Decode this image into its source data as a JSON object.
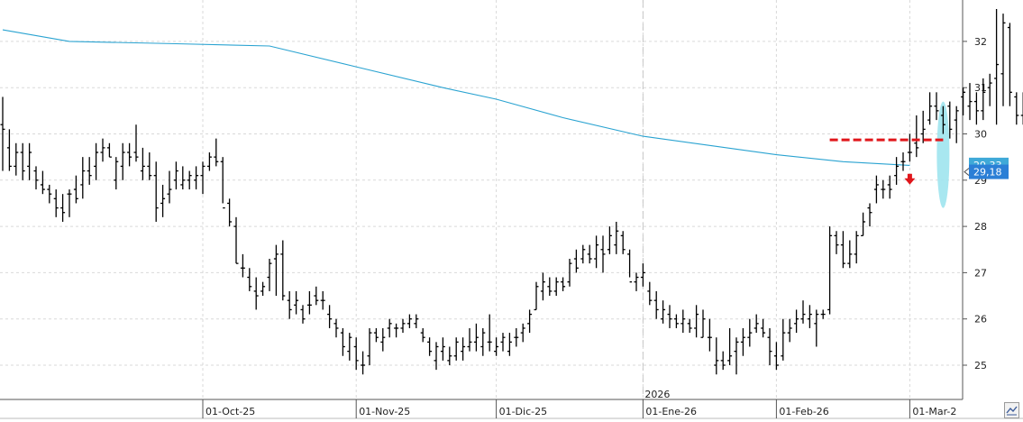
{
  "chart_data": {
    "type": "ohlc",
    "title": "",
    "xlabel": "",
    "ylabel": "",
    "ylim": [
      24.2,
      32.9
    ],
    "y_ticks": [
      25,
      26,
      27,
      28,
      29,
      30,
      31,
      32
    ],
    "y_tick_labels": [
      "25",
      "26",
      "27",
      "28",
      "29",
      "30",
      "31",
      "32"
    ],
    "grid": true,
    "x_tick_labels": [
      {
        "label": "01-Oct-25",
        "index": 30
      },
      {
        "label": "01-Nov-25",
        "index": 53
      },
      {
        "label": "01-Dic-25",
        "index": 74
      },
      {
        "label": "01-Ene-26",
        "index": 96
      },
      {
        "label": "01-Feb-26",
        "index": 116
      },
      {
        "label": "01-Mar-2",
        "index": 136
      }
    ],
    "year_marker": {
      "label": "2026",
      "index": 96
    },
    "last_price_label": "29,18",
    "last_price": 29.18,
    "ma_label_value": 29.33,
    "moving_average": {
      "color": "#2aa3d1",
      "points": [
        [
          0,
          32.25
        ],
        [
          10,
          32.0
        ],
        [
          26,
          31.95
        ],
        [
          40,
          31.9
        ],
        [
          53,
          31.45
        ],
        [
          66,
          31.0
        ],
        [
          74,
          30.75
        ],
        [
          84,
          30.35
        ],
        [
          96,
          29.95
        ],
        [
          106,
          29.75
        ],
        [
          116,
          29.55
        ],
        [
          126,
          29.4
        ],
        [
          136,
          29.32
        ]
      ]
    },
    "resistance_line": {
      "value": 29.87,
      "from_index": 124,
      "to_index": 141,
      "color": "#e0161b"
    },
    "sell_signal": {
      "index": 136,
      "value": 29.0,
      "color": "#e0161b"
    },
    "highlight_ellipse": {
      "index": 141,
      "low": 28.4,
      "high": 30.7,
      "color": "#9fe4ee"
    },
    "bars": [
      [
        30.2,
        30.8,
        29.2,
        30.1
      ],
      [
        29.7,
        30.1,
        29.2,
        29.3
      ],
      [
        29.3,
        29.8,
        29.1,
        29.6
      ],
      [
        29.6,
        29.8,
        29.0,
        29.2
      ],
      [
        29.3,
        29.8,
        29.0,
        29.6
      ],
      [
        29.2,
        29.3,
        28.8,
        29.0
      ],
      [
        28.9,
        29.2,
        28.7,
        28.8
      ],
      [
        28.8,
        28.9,
        28.5,
        28.7
      ],
      [
        28.6,
        28.8,
        28.2,
        28.4
      ],
      [
        28.4,
        28.7,
        28.1,
        28.3
      ],
      [
        28.7,
        28.8,
        28.2,
        28.7
      ],
      [
        28.8,
        29.1,
        28.5,
        28.6
      ],
      [
        28.9,
        29.5,
        28.6,
        29.2
      ],
      [
        29.2,
        29.5,
        28.9,
        29.1
      ],
      [
        29.3,
        29.8,
        29.0,
        29.6
      ],
      [
        29.6,
        29.9,
        29.4,
        29.7
      ],
      [
        29.7,
        29.8,
        29.5,
        29.5
      ],
      [
        29.0,
        29.5,
        28.8,
        29.4
      ],
      [
        29.3,
        29.8,
        29.0,
        29.6
      ],
      [
        29.6,
        29.8,
        29.3,
        29.5
      ],
      [
        29.6,
        30.2,
        29.4,
        29.5
      ],
      [
        29.2,
        29.7,
        29.0,
        29.3
      ],
      [
        29.3,
        29.6,
        29.0,
        29.1
      ],
      [
        29.1,
        29.4,
        28.1,
        28.4
      ],
      [
        28.5,
        28.9,
        28.2,
        28.6
      ],
      [
        28.7,
        29.2,
        28.5,
        28.8
      ],
      [
        29.0,
        29.4,
        28.8,
        29.2
      ],
      [
        28.9,
        29.3,
        28.8,
        29.0
      ],
      [
        29.0,
        29.2,
        28.8,
        29.1
      ],
      [
        29.0,
        29.3,
        28.8,
        29.1
      ],
      [
        29.1,
        29.4,
        28.7,
        29.3
      ],
      [
        29.3,
        29.6,
        29.2,
        29.5
      ],
      [
        29.5,
        29.9,
        29.3,
        29.4
      ],
      [
        29.4,
        29.5,
        28.5,
        28.4
      ],
      [
        28.5,
        28.6,
        28.0,
        28.1
      ],
      [
        28.0,
        28.2,
        27.2,
        27.2
      ],
      [
        27.1,
        27.4,
        26.9,
        27.1
      ],
      [
        26.9,
        27.1,
        26.6,
        26.7
      ],
      [
        26.6,
        26.9,
        26.2,
        26.5
      ],
      [
        26.6,
        26.8,
        26.5,
        26.7
      ],
      [
        26.9,
        27.3,
        26.6,
        27.2
      ],
      [
        27.3,
        27.6,
        26.5,
        27.4
      ],
      [
        27.4,
        27.7,
        26.4,
        26.5
      ],
      [
        26.4,
        26.6,
        26.0,
        26.2
      ],
      [
        26.3,
        26.6,
        26.1,
        26.4
      ],
      [
        26.2,
        26.3,
        25.9,
        26.0
      ],
      [
        26.3,
        26.6,
        26.1,
        26.3
      ],
      [
        26.5,
        26.7,
        26.3,
        26.4
      ],
      [
        26.4,
        26.6,
        26.2,
        26.4
      ],
      [
        26.1,
        26.3,
        25.8,
        26.0
      ],
      [
        25.9,
        26.0,
        25.6,
        25.8
      ],
      [
        25.7,
        25.8,
        25.2,
        25.4
      ],
      [
        25.3,
        25.7,
        25.1,
        25.6
      ],
      [
        25.4,
        25.6,
        24.9,
        25.1
      ],
      [
        25.0,
        25.3,
        24.8,
        25.0
      ],
      [
        25.2,
        25.8,
        25.0,
        25.7
      ],
      [
        25.7,
        25.8,
        25.5,
        25.6
      ],
      [
        25.5,
        25.8,
        25.3,
        25.6
      ],
      [
        25.8,
        26.0,
        25.6,
        25.9
      ],
      [
        25.8,
        25.9,
        25.6,
        25.8
      ],
      [
        25.8,
        26.0,
        25.7,
        25.9
      ],
      [
        25.9,
        26.1,
        25.8,
        26.0
      ],
      [
        25.9,
        26.1,
        25.8,
        26.0
      ],
      [
        25.7,
        25.8,
        25.5,
        25.6
      ],
      [
        25.5,
        25.6,
        25.2,
        25.3
      ],
      [
        25.1,
        25.5,
        24.9,
        25.4
      ],
      [
        25.3,
        25.6,
        25.1,
        25.4
      ],
      [
        25.1,
        25.4,
        25.0,
        25.2
      ],
      [
        25.2,
        25.6,
        25.1,
        25.5
      ],
      [
        25.3,
        25.6,
        25.1,
        25.4
      ],
      [
        25.4,
        25.8,
        25.3,
        25.5
      ],
      [
        25.5,
        25.9,
        25.3,
        25.6
      ],
      [
        25.4,
        25.8,
        25.2,
        25.7
      ],
      [
        25.5,
        26.1,
        25.3,
        25.5
      ],
      [
        25.3,
        25.6,
        25.2,
        25.4
      ],
      [
        25.5,
        25.7,
        25.3,
        25.6
      ],
      [
        25.3,
        25.7,
        25.2,
        25.5
      ],
      [
        25.6,
        25.8,
        25.4,
        25.6
      ],
      [
        25.7,
        25.9,
        25.5,
        25.8
      ],
      [
        25.9,
        26.2,
        25.7,
        26.1
      ],
      [
        26.2,
        26.8,
        26.2,
        26.7
      ],
      [
        26.6,
        27.0,
        26.4,
        26.8
      ],
      [
        26.7,
        26.9,
        26.5,
        26.6
      ],
      [
        26.6,
        26.9,
        26.5,
        26.8
      ],
      [
        26.8,
        26.9,
        26.6,
        26.7
      ],
      [
        26.8,
        27.3,
        26.7,
        27.2
      ],
      [
        27.3,
        27.5,
        27.0,
        27.1
      ],
      [
        27.3,
        27.6,
        27.2,
        27.5
      ],
      [
        27.4,
        27.6,
        27.2,
        27.3
      ],
      [
        27.3,
        27.8,
        27.1,
        27.6
      ],
      [
        27.5,
        27.8,
        27.0,
        27.4
      ],
      [
        27.5,
        28.0,
        27.4,
        27.8
      ],
      [
        27.6,
        28.1,
        27.4,
        27.9
      ],
      [
        27.8,
        27.9,
        27.4,
        27.5
      ],
      [
        27.4,
        27.5,
        26.9,
        26.8
      ],
      [
        26.8,
        27.0,
        26.6,
        26.9
      ],
      [
        26.9,
        27.2,
        26.7,
        27.0
      ],
      [
        26.6,
        26.8,
        26.3,
        26.4
      ],
      [
        26.4,
        26.6,
        26.0,
        26.2
      ],
      [
        26.0,
        26.4,
        25.9,
        26.2
      ],
      [
        26.1,
        26.3,
        25.8,
        26.0
      ],
      [
        26.0,
        26.1,
        25.8,
        25.9
      ],
      [
        25.9,
        26.2,
        25.7,
        26.0
      ],
      [
        25.9,
        26.0,
        25.7,
        25.8
      ],
      [
        25.8,
        26.3,
        25.6,
        26.1
      ],
      [
        25.6,
        26.2,
        25.6,
        26.0
      ],
      [
        25.6,
        26.0,
        25.3,
        25.6
      ],
      [
        25.0,
        25.6,
        24.8,
        25.1
      ],
      [
        25.1,
        25.3,
        24.9,
        25.0
      ],
      [
        25.1,
        25.8,
        25.0,
        25.2
      ],
      [
        25.3,
        25.6,
        24.8,
        25.5
      ],
      [
        25.5,
        25.8,
        25.2,
        25.6
      ],
      [
        25.6,
        26.0,
        25.4,
        25.7
      ],
      [
        25.8,
        26.1,
        25.7,
        25.9
      ],
      [
        25.8,
        26.0,
        25.6,
        25.7
      ],
      [
        25.6,
        25.8,
        25.0,
        25.3
      ],
      [
        25.2,
        25.5,
        24.9,
        25.0
      ],
      [
        25.2,
        26.0,
        25.1,
        25.7
      ],
      [
        25.7,
        26.0,
        25.5,
        25.8
      ],
      [
        25.9,
        26.2,
        25.7,
        26.0
      ],
      [
        26.0,
        26.4,
        25.9,
        26.1
      ],
      [
        26.0,
        26.3,
        25.8,
        26.1
      ],
      [
        25.9,
        26.2,
        25.4,
        26.1
      ],
      [
        26.1,
        26.2,
        26.0,
        26.1
      ],
      [
        26.2,
        28.0,
        26.1,
        27.8
      ],
      [
        27.8,
        27.9,
        27.4,
        27.6
      ],
      [
        27.6,
        27.9,
        27.1,
        27.2
      ],
      [
        27.2,
        27.7,
        27.1,
        27.4
      ],
      [
        27.4,
        27.9,
        27.2,
        27.8
      ],
      [
        27.8,
        28.3,
        27.8,
        28.1
      ],
      [
        28.4,
        28.5,
        28.0,
        28.3
      ],
      [
        28.8,
        29.1,
        28.5,
        28.9
      ],
      [
        28.8,
        29.0,
        28.6,
        28.8
      ],
      [
        28.9,
        29.1,
        28.6,
        28.8
      ],
      [
        29.1,
        29.5,
        28.9,
        29.3
      ],
      [
        29.4,
        29.6,
        29.2,
        29.4
      ],
      [
        29.6,
        30.0,
        29.4,
        29.6
      ],
      [
        29.8,
        30.4,
        29.5,
        29.7
      ],
      [
        30.0,
        30.5,
        29.8,
        30.1
      ],
      [
        30.3,
        30.9,
        30.2,
        30.6
      ],
      [
        30.6,
        30.9,
        30.3,
        30.5
      ],
      [
        30.4,
        30.6,
        30.0,
        30.2
      ],
      [
        30.6,
        30.7,
        29.9,
        30.1
      ],
      [
        30.3,
        30.6,
        29.8,
        30.5
      ],
      [
        30.8,
        31.0,
        30.4,
        30.9
      ],
      [
        30.6,
        31.1,
        30.3,
        30.7
      ],
      [
        30.7,
        30.9,
        30.2,
        30.5
      ],
      [
        30.5,
        31.2,
        30.3,
        30.9
      ],
      [
        31.0,
        31.3,
        30.6,
        31.1
      ],
      [
        31.2,
        32.7,
        30.2,
        31.5
      ],
      [
        31.3,
        32.6,
        30.6,
        32.4
      ],
      [
        32.3,
        32.4,
        30.6,
        30.9
      ],
      [
        30.8,
        30.9,
        30.2,
        30.4
      ],
      [
        30.4,
        30.9,
        30.2,
        30.3
      ],
      [
        30.4,
        30.8,
        28.4,
        29.2
      ]
    ]
  }
}
